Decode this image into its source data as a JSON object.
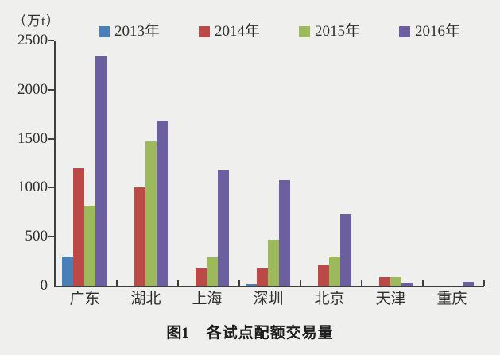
{
  "figure_background": "#eff0ee",
  "axis_color": "#3f3f3f",
  "text_color": "#2e2e2e",
  "unit_label": "（万t）",
  "caption": {
    "figure": "图1",
    "title": "各试点配额交易量"
  },
  "chart_data": {
    "type": "bar",
    "title": "图1 各试点配额交易量",
    "ylabel": "（万t）",
    "xlabel": "",
    "categories": [
      "广东",
      "湖北",
      "上海",
      "深圳",
      "北京",
      "天津",
      "重庆"
    ],
    "series": [
      {
        "name": "2013年",
        "color": "#4a80b8",
        "values": [
          300,
          0,
          0,
          15,
          0,
          0,
          0
        ]
      },
      {
        "name": "2014年",
        "color": "#bb4a47",
        "values": [
          1200,
          1000,
          180,
          180,
          210,
          90,
          0
        ]
      },
      {
        "name": "2015年",
        "color": "#9cba5c",
        "values": [
          820,
          1470,
          290,
          470,
          300,
          90,
          0
        ]
      },
      {
        "name": "2016年",
        "color": "#6c5f9f",
        "values": [
          2340,
          1680,
          1180,
          1080,
          730,
          30,
          40
        ]
      }
    ],
    "ylim": [
      0,
      2500
    ],
    "yticks": [
      0,
      500,
      1000,
      1500,
      2000,
      2500
    ],
    "grid": false,
    "legend_position": "top"
  }
}
